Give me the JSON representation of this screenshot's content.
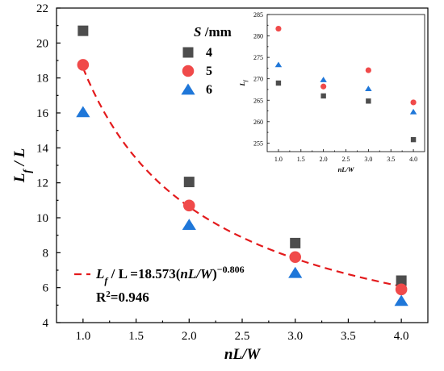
{
  "chart_data": [
    {
      "type": "scatter",
      "xlabel": "nL/W",
      "ylabel": "Lf / L",
      "xlim": [
        0.75,
        4.25
      ],
      "ylim": [
        4,
        22
      ],
      "xticks": [
        "1.0",
        "1.5",
        "2.0",
        "2.5",
        "3.0",
        "3.5",
        "4.0"
      ],
      "yticks": [
        "4",
        "6",
        "8",
        "10",
        "12",
        "14",
        "16",
        "18",
        "20",
        "22"
      ],
      "legend": {
        "title": "S /mm",
        "placement": "top-center",
        "entries": [
          "4",
          "5",
          "6"
        ]
      },
      "series": [
        {
          "name": "4",
          "marker": "square",
          "color": "#4d4d4d",
          "x": [
            1,
            2,
            3,
            4
          ],
          "y": [
            20.7,
            12.05,
            8.55,
            6.4
          ]
        },
        {
          "name": "5",
          "marker": "circle",
          "color": "#f04a4a",
          "x": [
            1,
            2,
            3,
            4
          ],
          "y": [
            18.75,
            10.7,
            7.75,
            5.9
          ]
        },
        {
          "name": "6",
          "marker": "triangle",
          "color": "#1f77d9",
          "x": [
            1,
            2,
            3,
            4
          ],
          "y": [
            16.05,
            9.6,
            6.85,
            5.25
          ]
        }
      ],
      "fit": {
        "color": "#e31a1c",
        "style": "dashed",
        "coef": 18.573,
        "exp": -0.806,
        "eq_lhs": "L",
        "eq_lhs_sub": "f",
        "eq_mid": " / L =18.573(",
        "eq_var": "nL/W",
        "eq_close": ")",
        "eq_exp": "−0.806",
        "r2_prefix": "R",
        "r2_sup": "2",
        "r2_value": "=0.946"
      }
    },
    {
      "type": "scatter",
      "xlabel": "nL/W",
      "ylabel": "Lf",
      "xlim": [
        0.75,
        4.25
      ],
      "ylim": [
        253,
        285
      ],
      "xticks": [
        "1.0",
        "1.5",
        "2.0",
        "2.5",
        "3.0",
        "3.5",
        "4.0"
      ],
      "yticks": [
        "255",
        "260",
        "265",
        "270",
        "275",
        "280",
        "285"
      ],
      "series": [
        {
          "name": "4",
          "marker": "square",
          "color": "#4d4d4d",
          "x": [
            1,
            2,
            3,
            4
          ],
          "y": [
            269,
            266,
            264.8,
            255.8
          ]
        },
        {
          "name": "5",
          "marker": "circle",
          "color": "#f04a4a",
          "x": [
            1,
            2,
            3,
            4
          ],
          "y": [
            281.7,
            268.2,
            272,
            264.5
          ]
        },
        {
          "name": "6",
          "marker": "triangle",
          "color": "#1f77d9",
          "x": [
            1,
            2,
            3,
            4
          ],
          "y": [
            273.3,
            269.8,
            267.7,
            262.3
          ]
        }
      ]
    }
  ]
}
